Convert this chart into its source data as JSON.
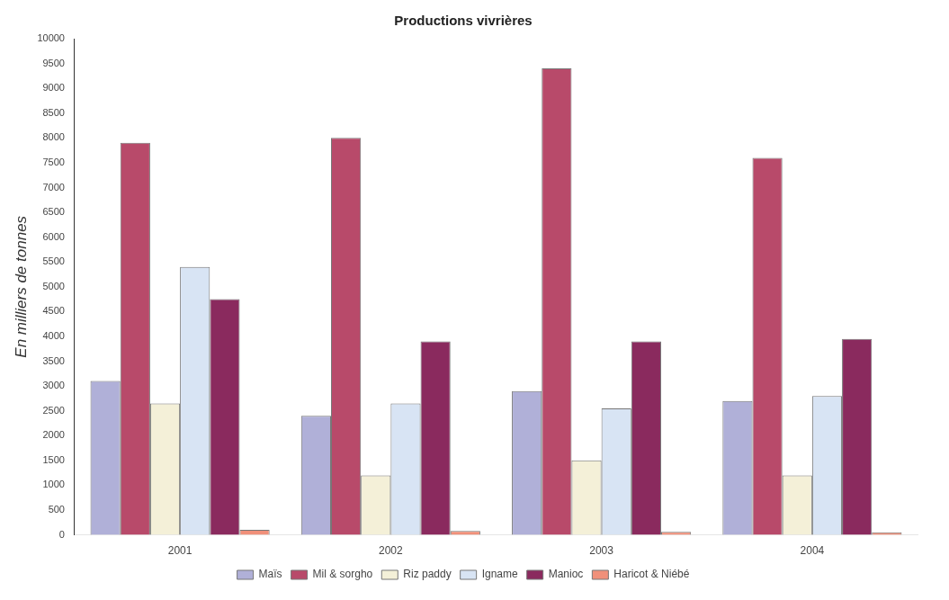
{
  "chart_data": {
    "type": "bar",
    "title": "Productions vivrières",
    "ylabel": "En milliers de tonnes",
    "categories": [
      "2001",
      "2002",
      "2003",
      "2004"
    ],
    "series": [
      {
        "name": "Maïs",
        "color": "#b0b0d8",
        "values": [
          3100,
          2400,
          2900,
          2700
        ]
      },
      {
        "name": "Mil & sorgho",
        "color": "#b84a6a",
        "values": [
          7900,
          8000,
          9400,
          7600
        ]
      },
      {
        "name": "Riz paddy",
        "color": "#f4f0d8",
        "values": [
          2650,
          1200,
          1500,
          1200
        ]
      },
      {
        "name": "Igname",
        "color": "#d8e4f4",
        "values": [
          5400,
          2650,
          2550,
          2800
        ]
      },
      {
        "name": "Manioc",
        "color": "#8a2a5e",
        "values": [
          4750,
          3900,
          3900,
          3950
        ]
      },
      {
        "name": "Haricot & Niébé",
        "color": "#f0907a",
        "values": [
          100,
          80,
          60,
          50
        ]
      }
    ],
    "ylim": [
      0,
      10000
    ],
    "yticks": [
      0,
      500,
      1000,
      1500,
      2000,
      2500,
      3000,
      3500,
      4000,
      4500,
      5000,
      5500,
      6000,
      6500,
      7000,
      7500,
      8000,
      8500,
      9000,
      9500,
      10000
    ],
    "legend": "bottom"
  }
}
